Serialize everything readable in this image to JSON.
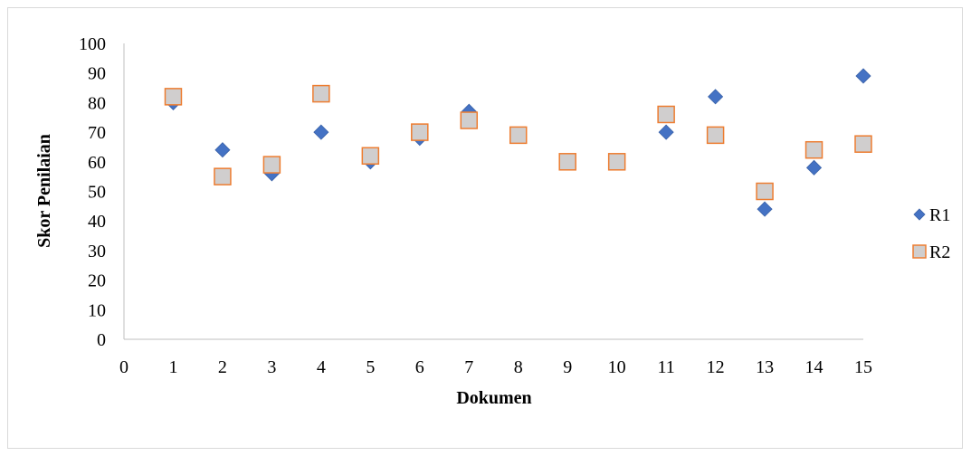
{
  "chart_data": {
    "type": "scatter",
    "title": "",
    "xlabel": "Dokumen",
    "ylabel": "Skor Penilaian",
    "xlim": [
      0,
      15
    ],
    "ylim": [
      0,
      100
    ],
    "x_ticks": [
      0,
      1,
      2,
      3,
      4,
      5,
      6,
      7,
      8,
      9,
      10,
      11,
      12,
      13,
      14,
      15
    ],
    "y_ticks": [
      0,
      10,
      20,
      30,
      40,
      50,
      60,
      70,
      80,
      90,
      100
    ],
    "grid": false,
    "legend_position": "right",
    "series": [
      {
        "name": "R1",
        "marker": "diamond",
        "color": "#4472C4",
        "x": [
          1,
          2,
          3,
          4,
          5,
          6,
          7,
          8,
          9,
          10,
          11,
          12,
          13,
          14,
          15
        ],
        "y": [
          80,
          64,
          56,
          70,
          60,
          68,
          77,
          69,
          60,
          60,
          70,
          82,
          44,
          58,
          89
        ]
      },
      {
        "name": "R2",
        "marker": "square",
        "color": "#D0CECE",
        "edge_color": "#ED7D31",
        "x": [
          1,
          2,
          3,
          4,
          5,
          6,
          7,
          8,
          9,
          10,
          11,
          12,
          13,
          14,
          15
        ],
        "y": [
          82,
          55,
          59,
          83,
          62,
          70,
          74,
          69,
          60,
          60,
          76,
          69,
          50,
          64,
          66
        ]
      }
    ]
  }
}
